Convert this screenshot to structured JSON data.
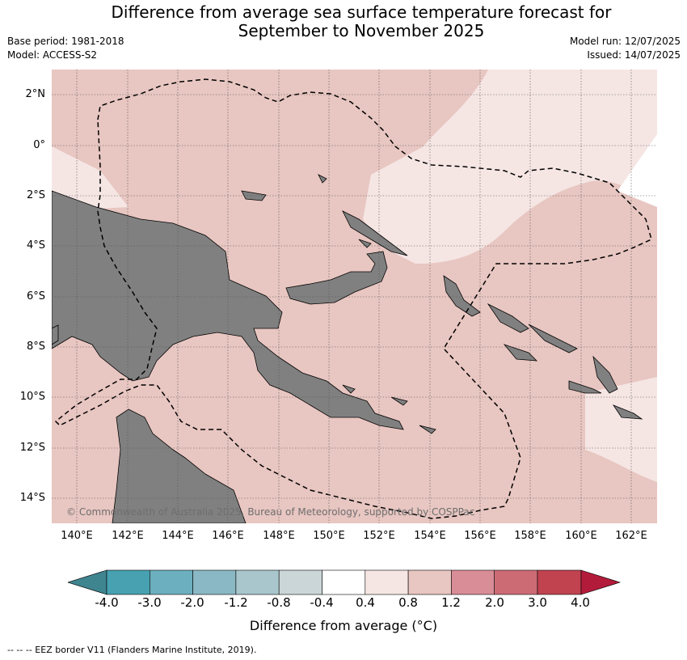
{
  "title_line1": "Difference from average sea surface temperature forecast for",
  "title_line2": "September to November 2025",
  "base_period": "Base period: 1981-2018",
  "model": "Model: ACCESS-S2",
  "model_run": "Model run: 12/07/2025",
  "issued": "Issued: 14/07/2025",
  "copyright": "© Commonwealth of Australia 2025, Bureau of Meteorology, supported by COSPPac",
  "lat_labels": [
    "2°N",
    "0°",
    "2°S",
    "4°S",
    "6°S",
    "8°S",
    "10°S",
    "12°S",
    "14°S"
  ],
  "lon_labels": [
    "140°E",
    "142°E",
    "144°E",
    "146°E",
    "148°E",
    "150°E",
    "152°E",
    "154°E",
    "156°E",
    "158°E",
    "160°E",
    "162°E"
  ],
  "colorbar": {
    "title": "Difference from average (°C)",
    "labels": [
      "-4.0",
      "-3.0",
      "-2.0",
      "-1.2",
      "-0.8",
      "-0.4",
      "0.4",
      "0.8",
      "1.2",
      "2.0",
      "3.0",
      "4.0"
    ],
    "colors": [
      "#3f8590",
      "#47a1b1",
      "#6cafbe",
      "#8ab8c4",
      "#a8c6cc",
      "#cbd6d9",
      "#ffffff",
      "#f5e6e4",
      "#e8c6c1",
      "#d98d97",
      "#cd6b75",
      "#c0434f",
      "#b31b3a"
    ]
  },
  "legend_note": "--  --  -- EEZ border V11 (Flanders Marine Institute, 2019).",
  "colors": {
    "anomaly_0_8_to_1_2": "#e8c6c1",
    "anomaly_0_4_to_0_8": "#f5e6e4",
    "land": "#808080"
  }
}
